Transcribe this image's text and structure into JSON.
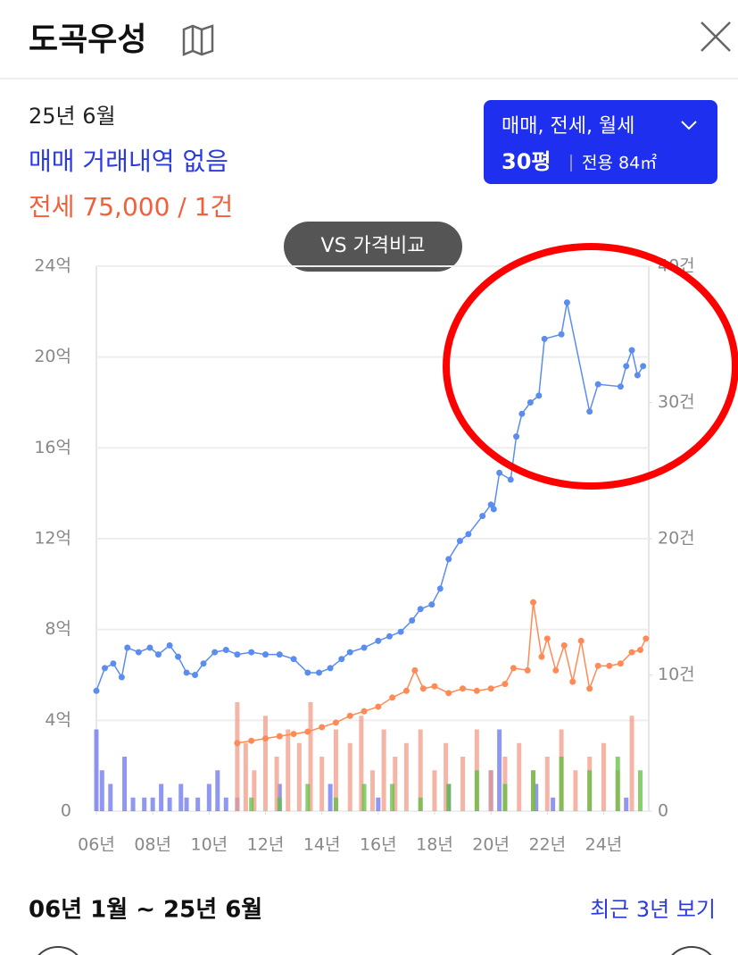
{
  "header": {
    "title": "도곡우성"
  },
  "summary": {
    "date": "25년 6월",
    "sale": "매매 거래내역 없음",
    "jeonse": "전세 75,000 / 1건"
  },
  "filter": {
    "types": "매매, 전세, 월세",
    "size": "30평",
    "area": "전용 84㎡"
  },
  "compare_button": "VS 가격비교",
  "chart_data": {
    "type": "line",
    "xlim": [
      2006,
      2025.6
    ],
    "xticks": [
      {
        "value": 2006,
        "label": "06년"
      },
      {
        "value": 2008,
        "label": "08년"
      },
      {
        "value": 2010,
        "label": "10년"
      },
      {
        "value": 2012,
        "label": "12년"
      },
      {
        "value": 2014,
        "label": "14년"
      },
      {
        "value": 2016,
        "label": "16년"
      },
      {
        "value": 2018,
        "label": "18년"
      },
      {
        "value": 2020,
        "label": "20년"
      },
      {
        "value": 2022,
        "label": "22년"
      },
      {
        "value": 2024,
        "label": "24년"
      }
    ],
    "ylim": [
      0,
      24
    ],
    "yticks": [
      0,
      {
        "value": 4,
        "label": "4억"
      },
      {
        "value": 8,
        "label": "8억"
      },
      {
        "value": 12,
        "label": "12억"
      },
      {
        "value": 16,
        "label": "16억"
      },
      {
        "value": 20,
        "label": "20억"
      },
      {
        "value": 24,
        "label": "24억"
      }
    ],
    "y2lim": [
      0,
      40
    ],
    "y2ticks": [
      0,
      {
        "value": 10,
        "label": "10건"
      },
      {
        "value": 20,
        "label": "20건"
      },
      {
        "value": 30,
        "label": "30건"
      },
      {
        "value": 40,
        "label": "40건"
      }
    ],
    "grid": true,
    "series": [
      {
        "type": "bar",
        "axis": "y2",
        "color": "#6a74ee",
        "x": [
          2006.0,
          2006.2,
          2006.5,
          2007.0,
          2007.3,
          2007.7,
          2008.0,
          2008.3,
          2008.6,
          2009.0,
          2009.2,
          2009.6,
          2010.0,
          2010.3,
          2010.6,
          2011.0,
          2012.5,
          2014.3,
          2016.0,
          2018.5,
          2020.0,
          2020.3,
          2021.6,
          2022.2,
          2024.8
        ],
        "values": [
          6,
          3,
          2,
          4,
          1,
          1,
          1,
          2,
          1,
          2,
          1,
          1,
          2,
          3,
          1,
          1,
          2,
          2,
          1,
          2,
          3,
          6,
          2,
          1,
          1
        ]
      },
      {
        "type": "bar",
        "axis": "y2",
        "color": "#f29c88",
        "x": [
          2011.0,
          2011.3,
          2011.6,
          2012.0,
          2012.4,
          2012.8,
          2013.2,
          2013.6,
          2014.0,
          2014.5,
          2015.0,
          2015.4,
          2015.8,
          2016.2,
          2016.6,
          2017.0,
          2017.5,
          2018.0,
          2018.4,
          2019.0,
          2019.5,
          2020.0,
          2020.5,
          2021.0,
          2021.5,
          2022.0,
          2022.5,
          2023.0,
          2023.5,
          2024.0,
          2024.5,
          2025.0
        ],
        "values": [
          8,
          5,
          3,
          7,
          4,
          6,
          5,
          8,
          4,
          6,
          5,
          7,
          3,
          6,
          4,
          5,
          6,
          3,
          5,
          4,
          6,
          3,
          4,
          5,
          3,
          4,
          6,
          3,
          4,
          5,
          3,
          7
        ]
      },
      {
        "type": "bar",
        "axis": "y2",
        "color": "#5fbf3f",
        "x": [
          2011.5,
          2012.5,
          2013.5,
          2014.5,
          2015.5,
          2016.5,
          2017.5,
          2018.5,
          2019.5,
          2020.5,
          2021.5,
          2022.5,
          2023.5,
          2024.5,
          2025.3
        ],
        "values": [
          1,
          1,
          2,
          1,
          2,
          2,
          1,
          2,
          3,
          2,
          3,
          4,
          3,
          4,
          3
        ]
      },
      {
        "type": "line",
        "color": "#ff8a55",
        "x": [
          2011.0,
          2011.5,
          2012.0,
          2012.5,
          2013.0,
          2013.5,
          2014.0,
          2014.5,
          2015.0,
          2015.5,
          2016.0,
          2016.5,
          2017.0,
          2017.3,
          2017.6,
          2018.0,
          2018.5,
          2019.0,
          2019.5,
          2020.0,
          2020.5,
          2020.8,
          2021.3,
          2021.5,
          2021.8,
          2022.0,
          2022.3,
          2022.6,
          2022.9,
          2023.2,
          2023.5,
          2023.8,
          2024.2,
          2024.6,
          2025.0,
          2025.3,
          2025.5
        ],
        "values": [
          3.0,
          3.1,
          3.2,
          3.3,
          3.4,
          3.5,
          3.7,
          3.9,
          4.2,
          4.4,
          4.6,
          5.0,
          5.3,
          6.2,
          5.4,
          5.5,
          5.2,
          5.4,
          5.3,
          5.4,
          5.6,
          6.3,
          6.2,
          9.2,
          6.8,
          7.6,
          6.2,
          7.3,
          5.7,
          7.5,
          5.4,
          6.4,
          6.4,
          6.5,
          7.0,
          7.1,
          7.6
        ]
      },
      {
        "type": "line",
        "color": "#5b8def",
        "x": [
          2006.0,
          2006.3,
          2006.6,
          2006.9,
          2007.1,
          2007.5,
          2007.9,
          2008.2,
          2008.6,
          2008.9,
          2009.2,
          2009.5,
          2009.8,
          2010.2,
          2010.6,
          2011.0,
          2011.5,
          2012.0,
          2012.5,
          2013.0,
          2013.5,
          2013.9,
          2014.3,
          2014.7,
          2015.0,
          2015.5,
          2016.0,
          2016.4,
          2016.8,
          2017.2,
          2017.5,
          2017.9,
          2018.2,
          2018.5,
          2018.9,
          2019.2,
          2019.7,
          2020.0,
          2020.1,
          2020.3,
          2020.7,
          2020.9,
          2021.1,
          2021.4,
          2021.7,
          2021.9,
          2022.5,
          2022.7,
          2023.5,
          2023.8,
          2024.6,
          2024.8,
          2025.0,
          2025.2,
          2025.4
        ],
        "values": [
          5.3,
          6.3,
          6.5,
          5.9,
          7.2,
          7.0,
          7.2,
          6.9,
          7.3,
          6.8,
          6.1,
          6.0,
          6.5,
          7.0,
          7.1,
          6.9,
          7.0,
          6.9,
          6.9,
          6.7,
          6.1,
          6.1,
          6.3,
          6.7,
          7.0,
          7.2,
          7.5,
          7.7,
          7.9,
          8.4,
          8.9,
          9.1,
          9.8,
          11.1,
          11.9,
          12.2,
          13.0,
          13.5,
          13.3,
          14.9,
          14.6,
          16.5,
          17.5,
          18.0,
          18.3,
          20.8,
          21.0,
          22.4,
          17.6,
          18.8,
          18.7,
          19.6,
          20.3,
          19.2,
          19.6
        ]
      }
    ]
  },
  "footer": {
    "range": "06년 1월 ~ 25년 6월",
    "recent": "최근 3년 보기"
  }
}
